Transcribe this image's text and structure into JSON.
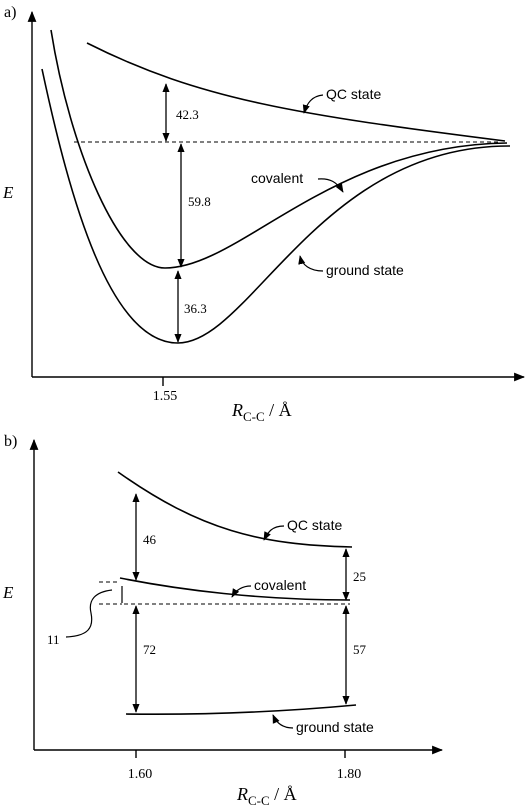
{
  "panel_a": {
    "tag": "a)",
    "y_label": "E",
    "x_label_main": "R",
    "x_label_sub": "C-C",
    "x_label_unit": " / Å",
    "x_tick": "1.55",
    "curves": {
      "qc": "QC state",
      "covalent": "covalent",
      "ground": "ground state"
    },
    "gaps": {
      "qc_to_ref": "42.3",
      "ref_to_covalent": "59.8",
      "covalent_to_ground": "36.3"
    }
  },
  "panel_b": {
    "tag": "b)",
    "y_label": "E",
    "x_label_main": "R",
    "x_label_sub": "C-C",
    "x_label_unit": " / Å",
    "x_ticks": [
      "1.60",
      "1.80"
    ],
    "curves": {
      "qc": "QC state",
      "covalent": "covalent",
      "ground": "ground state"
    },
    "gaps": {
      "left_qc_to_covalent": "46",
      "left_ref_to_ground": "72",
      "left_small": "11",
      "right_qc_to_covalent": "25",
      "right_ref_to_ground": "57"
    }
  }
}
